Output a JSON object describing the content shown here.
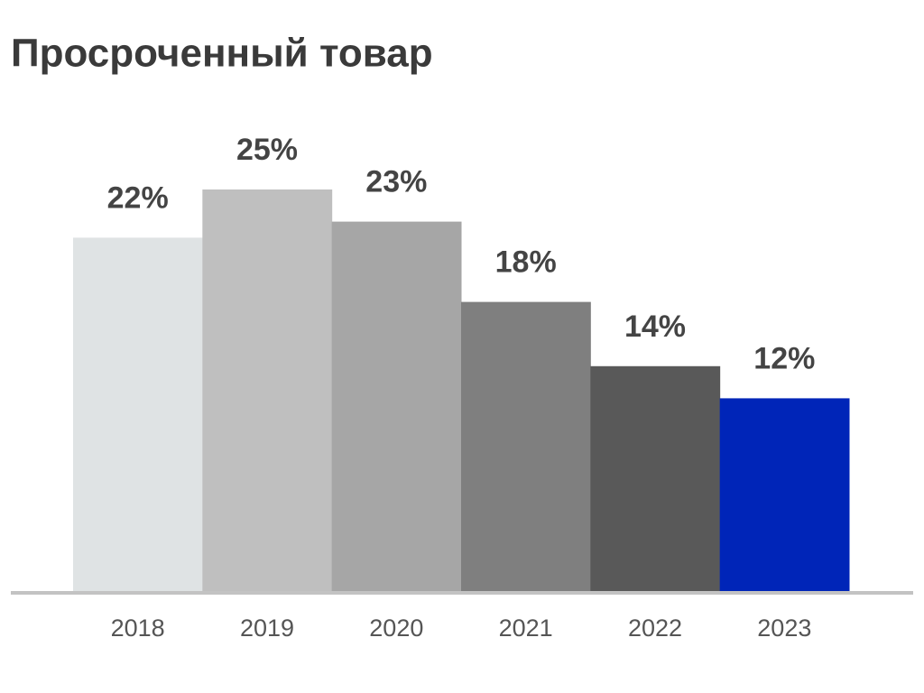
{
  "chart_data": {
    "type": "bar",
    "title": "Просроченный товар",
    "categories": [
      "2018",
      "2019",
      "2020",
      "2021",
      "2022",
      "2023"
    ],
    "values": [
      22,
      25,
      23,
      18,
      14,
      12
    ],
    "value_labels": [
      "22%",
      "25%",
      "23%",
      "18%",
      "14%",
      "12%"
    ],
    "colors": [
      "#dfe3e4",
      "#bfbfbf",
      "#a6a6a6",
      "#7f7f7f",
      "#595959",
      "#0025b8"
    ]
  }
}
